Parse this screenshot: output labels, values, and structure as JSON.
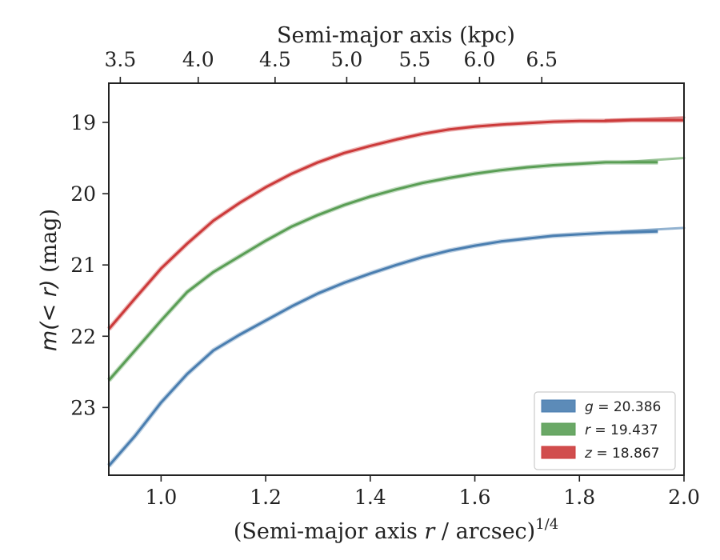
{
  "chart_data": {
    "type": "line",
    "title": "",
    "xlabel_prefix": "(Semi-major axis ",
    "xlabel_var": "r",
    "xlabel_suffix": " / arcsec)",
    "xlabel_exp": "1/4",
    "ylabel_prefix": "m(< r)",
    "ylabel_suffix": " (mag)",
    "x2label": "Semi-major axis (kpc)",
    "xlim": [
      0.9,
      2.0
    ],
    "ylim": [
      23.95,
      18.45
    ],
    "y_inverted": true,
    "x_ticks": [
      "1.0",
      "1.2",
      "1.4",
      "1.6",
      "1.8",
      "2.0"
    ],
    "y_ticks": [
      "19",
      "20",
      "21",
      "22",
      "23"
    ],
    "x2_ticks": [
      "3.5",
      "4.0",
      "4.5",
      "5.0",
      "5.5",
      "6.0",
      "6.5"
    ],
    "x2_tick_positions": [
      0.922,
      1.071,
      1.218,
      1.355,
      1.485,
      1.609,
      1.728
    ],
    "grid": false,
    "legend_position": "bottom-right",
    "series": [
      {
        "name": "g = 20.386",
        "legend_var": "g",
        "legend_value": "= 20.386",
        "color": "#4a7eb0",
        "x": [
          0.9,
          0.95,
          1.0,
          1.05,
          1.1,
          1.15,
          1.2,
          1.25,
          1.3,
          1.35,
          1.4,
          1.45,
          1.5,
          1.55,
          1.6,
          1.65,
          1.7,
          1.75,
          1.8,
          1.85,
          1.9,
          1.95
        ],
        "y": [
          23.82,
          23.4,
          22.93,
          22.53,
          22.2,
          21.98,
          21.78,
          21.58,
          21.4,
          21.25,
          21.12,
          21.0,
          20.89,
          20.8,
          20.73,
          20.67,
          20.63,
          20.59,
          20.57,
          20.55,
          20.54,
          20.53
        ],
        "extension": {
          "x": [
            1.88,
            2.0
          ],
          "y": [
            20.53,
            20.48
          ]
        }
      },
      {
        "name": "r = 19.437",
        "legend_var": "r",
        "legend_value": "= 19.437",
        "color": "#5a9e55",
        "x": [
          0.9,
          0.95,
          1.0,
          1.05,
          1.1,
          1.15,
          1.2,
          1.25,
          1.3,
          1.35,
          1.4,
          1.45,
          1.5,
          1.55,
          1.6,
          1.65,
          1.7,
          1.75,
          1.8,
          1.85,
          1.9,
          1.95
        ],
        "y": [
          22.62,
          22.2,
          21.78,
          21.38,
          21.1,
          20.88,
          20.66,
          20.46,
          20.3,
          20.16,
          20.04,
          19.94,
          19.85,
          19.78,
          19.72,
          19.67,
          19.63,
          19.6,
          19.58,
          19.56,
          19.56,
          19.56
        ],
        "extension": {
          "x": [
            1.88,
            2.0
          ],
          "y": [
            19.56,
            19.5
          ]
        }
      },
      {
        "name": "z = 18.867",
        "legend_var": "z",
        "legend_value": "= 18.867",
        "color": "#cc3a3a",
        "x": [
          0.9,
          0.95,
          1.0,
          1.05,
          1.1,
          1.15,
          1.2,
          1.25,
          1.3,
          1.35,
          1.4,
          1.45,
          1.5,
          1.55,
          1.6,
          1.65,
          1.7,
          1.75,
          1.8,
          1.85,
          1.9,
          1.95,
          2.0
        ],
        "y": [
          21.9,
          21.47,
          21.05,
          20.7,
          20.38,
          20.13,
          19.91,
          19.72,
          19.56,
          19.43,
          19.33,
          19.24,
          19.16,
          19.1,
          19.06,
          19.03,
          19.01,
          18.99,
          18.98,
          18.98,
          18.97,
          18.97,
          18.97
        ],
        "extension": {
          "x": [
            1.85,
            2.0
          ],
          "y": [
            18.97,
            18.93
          ]
        }
      }
    ]
  }
}
